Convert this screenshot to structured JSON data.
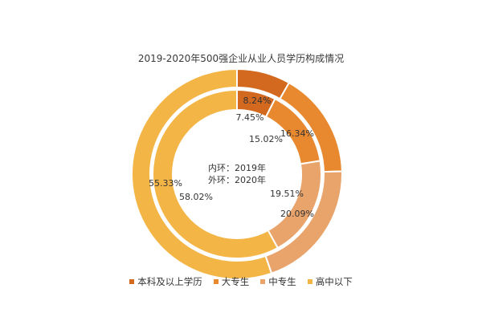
{
  "chart_data": {
    "type": "pie",
    "variant": "nested-donut",
    "title": "2019-2020年500强企业从业人员学历构成情况",
    "categories": [
      "本科及以上学历",
      "大专生",
      "中专生",
      "高中以下"
    ],
    "colors": [
      "#D2691E",
      "#E8892F",
      "#E9A46C",
      "#F4B547"
    ],
    "series": [
      {
        "ring": "inner",
        "values": [
          7.45,
          15.02,
          19.51,
          58.02
        ],
        "labels": [
          "7.45%",
          "15.02%",
          "19.51%",
          "58.02%"
        ]
      },
      {
        "ring": "outer",
        "values": [
          8.24,
          16.34,
          20.09,
          55.33
        ],
        "labels": [
          "8.24%",
          "16.34%",
          "20.09%",
          "55.33%"
        ]
      }
    ],
    "center_text": [
      "内环：2019年",
      "外环：2020年"
    ],
    "legend_position": "bottom"
  }
}
